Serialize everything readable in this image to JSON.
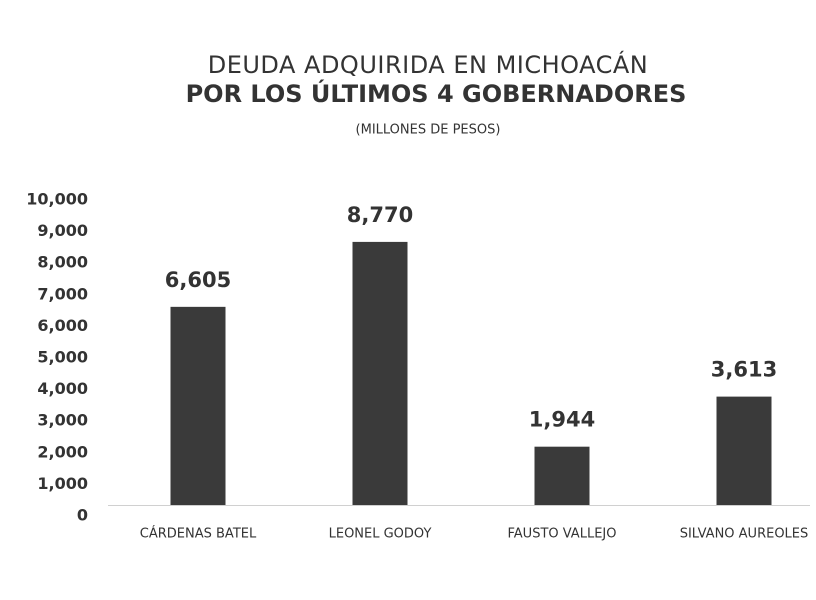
{
  "chart_data": {
    "type": "bar",
    "title_lines": [
      "DEUDA ADQUIRIDA EN MICHOACÁN",
      "POR LOS ÚLTIMOS 4 GOBERNADORES"
    ],
    "subtitle": "(MILLONES DE PESOS)",
    "categories": [
      "CÁRDENAS BATEL",
      "LEONEL GODOY",
      "FAUSTO VALLEJO",
      "SILVANO AUREOLES"
    ],
    "values": [
      6605,
      8770,
      1944,
      3613
    ],
    "value_labels": [
      "6,605",
      "8,770",
      "1,944",
      "3,613"
    ],
    "color": "#3a3a3a",
    "ylim": [
      0,
      10000
    ],
    "yticks": [
      0,
      {
        "value": 1000,
        "label": "1,000"
      },
      {
        "value": 2000,
        "label": "2,000"
      },
      {
        "value": 3000,
        "label": "3,000"
      },
      {
        "value": 4000,
        "label": "4,000"
      },
      {
        "value": 5000,
        "label": "5,000"
      },
      {
        "value": 6000,
        "label": "6,000"
      },
      {
        "value": 7000,
        "label": "7,000"
      },
      {
        "value": 8000,
        "label": "8,000"
      },
      {
        "value": 9000,
        "label": "9,000"
      },
      {
        "value": 10000,
        "label": "10,000"
      }
    ],
    "grid": false
  }
}
